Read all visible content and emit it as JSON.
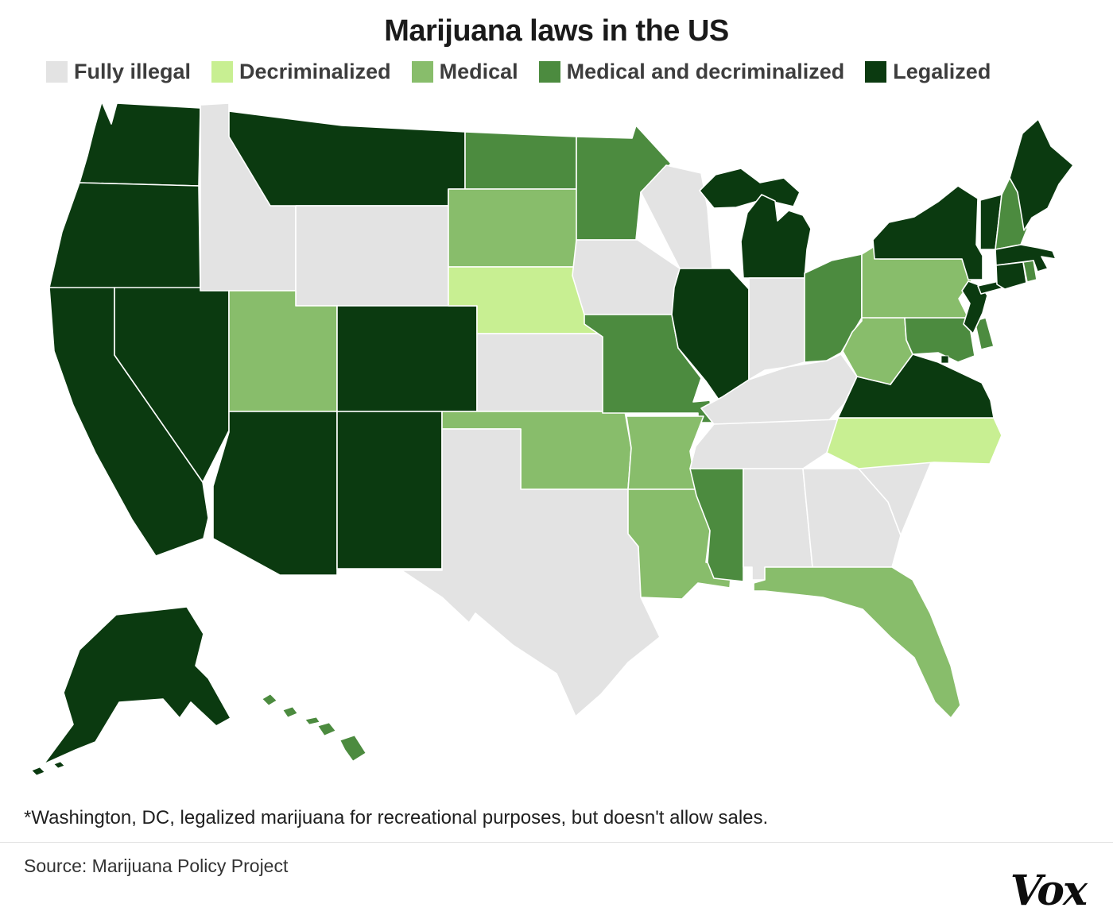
{
  "title": "Marijuana laws in the US",
  "footnote": "*Washington, DC, legalized marijuana for recreational purposes, but doesn't allow sales.",
  "source": "Source: Marijuana Policy Project",
  "logo": "Vox",
  "chart_data": {
    "type": "choropleth",
    "title": "Marijuana laws in the US",
    "legend_position": "top",
    "categories": [
      {
        "key": "fully_illegal",
        "label": "Fully illegal",
        "color": "#e3e3e3"
      },
      {
        "key": "decriminalized",
        "label": "Decriminalized",
        "color": "#c8ef92"
      },
      {
        "key": "medical",
        "label": "Medical",
        "color": "#88bd6b"
      },
      {
        "key": "medical_decriminalized",
        "label": "Medical and decriminalized",
        "color": "#4c8b3f"
      },
      {
        "key": "legalized",
        "label": "Legalized",
        "color": "#0b3a10"
      }
    ],
    "states": {
      "AK": "legalized",
      "AL": "fully_illegal",
      "AR": "medical",
      "AZ": "legalized",
      "CA": "legalized",
      "CO": "legalized",
      "CT": "legalized",
      "DC": "legalized",
      "DE": "medical_decriminalized",
      "FL": "medical",
      "GA": "fully_illegal",
      "HI": "medical_decriminalized",
      "IA": "fully_illegal",
      "ID": "fully_illegal",
      "IL": "legalized",
      "IN": "fully_illegal",
      "KS": "fully_illegal",
      "KY": "fully_illegal",
      "LA": "medical",
      "MA": "legalized",
      "MD": "medical_decriminalized",
      "ME": "legalized",
      "MI": "legalized",
      "MN": "medical_decriminalized",
      "MO": "medical_decriminalized",
      "MS": "medical_decriminalized",
      "MT": "legalized",
      "NC": "decriminalized",
      "ND": "medical_decriminalized",
      "NE": "decriminalized",
      "NH": "medical_decriminalized",
      "NJ": "legalized",
      "NM": "legalized",
      "NV": "legalized",
      "NY": "legalized",
      "OH": "medical_decriminalized",
      "OK": "medical",
      "OR": "legalized",
      "PA": "medical",
      "RI": "medical_decriminalized",
      "SC": "fully_illegal",
      "SD": "medical",
      "TN": "fully_illegal",
      "TX": "fully_illegal",
      "UT": "medical",
      "VA": "legalized",
      "VT": "legalized",
      "WA": "legalized",
      "WI": "fully_illegal",
      "WV": "medical",
      "WY": "fully_illegal"
    }
  }
}
